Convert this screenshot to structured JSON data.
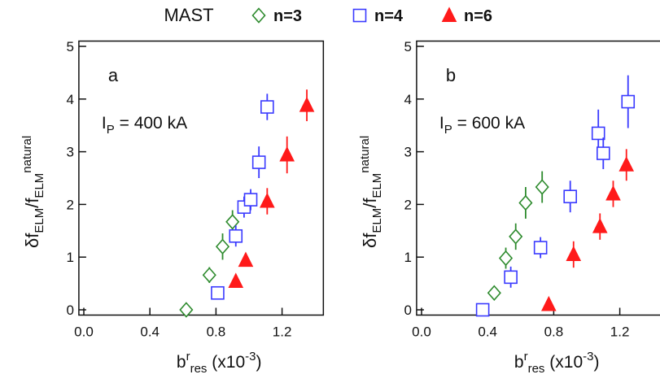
{
  "header": {
    "title": "MAST"
  },
  "chart_data": [
    {
      "type": "scatter",
      "panel_label": "a",
      "annotation": [
        "I",
        "P",
        " = 400 kA"
      ],
      "xlabel": [
        "b",
        "r",
        "res",
        " (x10",
        "-3",
        ")"
      ],
      "ylabel": [
        "δf",
        "ELM",
        "/f",
        "ELM",
        "natural"
      ],
      "xlim": [
        -0.03,
        1.45
      ],
      "ylim": [
        -0.1,
        5.1
      ],
      "xticks": [
        {
          "value": 0,
          "label": "0.0"
        },
        0.4,
        0.8,
        1.2
      ],
      "yticks": [
        0,
        1,
        2,
        3,
        4,
        5
      ],
      "series": [
        {
          "name": "n=3",
          "marker": "diamond",
          "color": "#2e8b2e",
          "x": [
            0.62,
            0.76,
            0.84,
            0.9
          ],
          "values": [
            0,
            0.66,
            1.2,
            1.67
          ],
          "errors": [
            0,
            0.15,
            0.25,
            0.22
          ]
        },
        {
          "name": "n=4",
          "marker": "square",
          "color": "#3a3aff",
          "x": [
            0.81,
            0.92,
            0.97,
            1.01,
            1.06,
            1.11
          ],
          "values": [
            0.32,
            1.4,
            1.95,
            2.09,
            2.8,
            3.85
          ],
          "errors": [
            0,
            0.2,
            0.2,
            0.2,
            0.3,
            0.25
          ]
        },
        {
          "name": "n=6",
          "marker": "triangle",
          "color": "#ff1a1a",
          "x": [
            0.92,
            0.98,
            1.11,
            1.23,
            1.35
          ],
          "values": [
            0.54,
            0.94,
            2.06,
            2.94,
            3.88
          ],
          "errors": [
            0,
            0.12,
            0.25,
            0.35,
            0.3
          ]
        }
      ]
    },
    {
      "type": "scatter",
      "panel_label": "b",
      "annotation": [
        "I",
        "P",
        " = 600 kA"
      ],
      "xlabel": [
        "b",
        "r",
        "res",
        " (x10",
        "-3",
        ")"
      ],
      "ylabel": [
        "δf",
        "ELM",
        "/f",
        "ELM",
        "natural"
      ],
      "xlim": [
        -0.03,
        1.45
      ],
      "ylim": [
        -0.1,
        5.1
      ],
      "xticks": [
        {
          "value": 0,
          "label": "0.0"
        },
        0.4,
        0.8,
        1.2
      ],
      "yticks": [
        0,
        1,
        2,
        3,
        4,
        5
      ],
      "series": [
        {
          "name": "n=3",
          "marker": "diamond",
          "color": "#2e8b2e",
          "x": [
            0.44,
            0.51,
            0.57,
            0.63,
            0.73
          ],
          "values": [
            0.32,
            0.98,
            1.39,
            2.03,
            2.33
          ],
          "errors": [
            0.12,
            0.2,
            0.25,
            0.3,
            0.3
          ]
        },
        {
          "name": "n=4",
          "marker": "square",
          "color": "#3a3aff",
          "x": [
            0.37,
            0.54,
            0.72,
            0.9,
            1.07,
            1.1,
            1.25
          ],
          "values": [
            0,
            0.62,
            1.18,
            2.15,
            3.35,
            2.97,
            3.95
          ],
          "errors": [
            0,
            0.2,
            0.2,
            0.3,
            0.45,
            0.3,
            0.5
          ]
        },
        {
          "name": "n=6",
          "marker": "triangle",
          "color": "#ff1a1a",
          "x": [
            0.77,
            0.92,
            1.08,
            1.16,
            1.24
          ],
          "values": [
            0.1,
            1.05,
            1.58,
            2.2,
            2.75
          ],
          "errors": [
            0,
            0.25,
            0.25,
            0.25,
            0.3
          ]
        }
      ]
    }
  ]
}
